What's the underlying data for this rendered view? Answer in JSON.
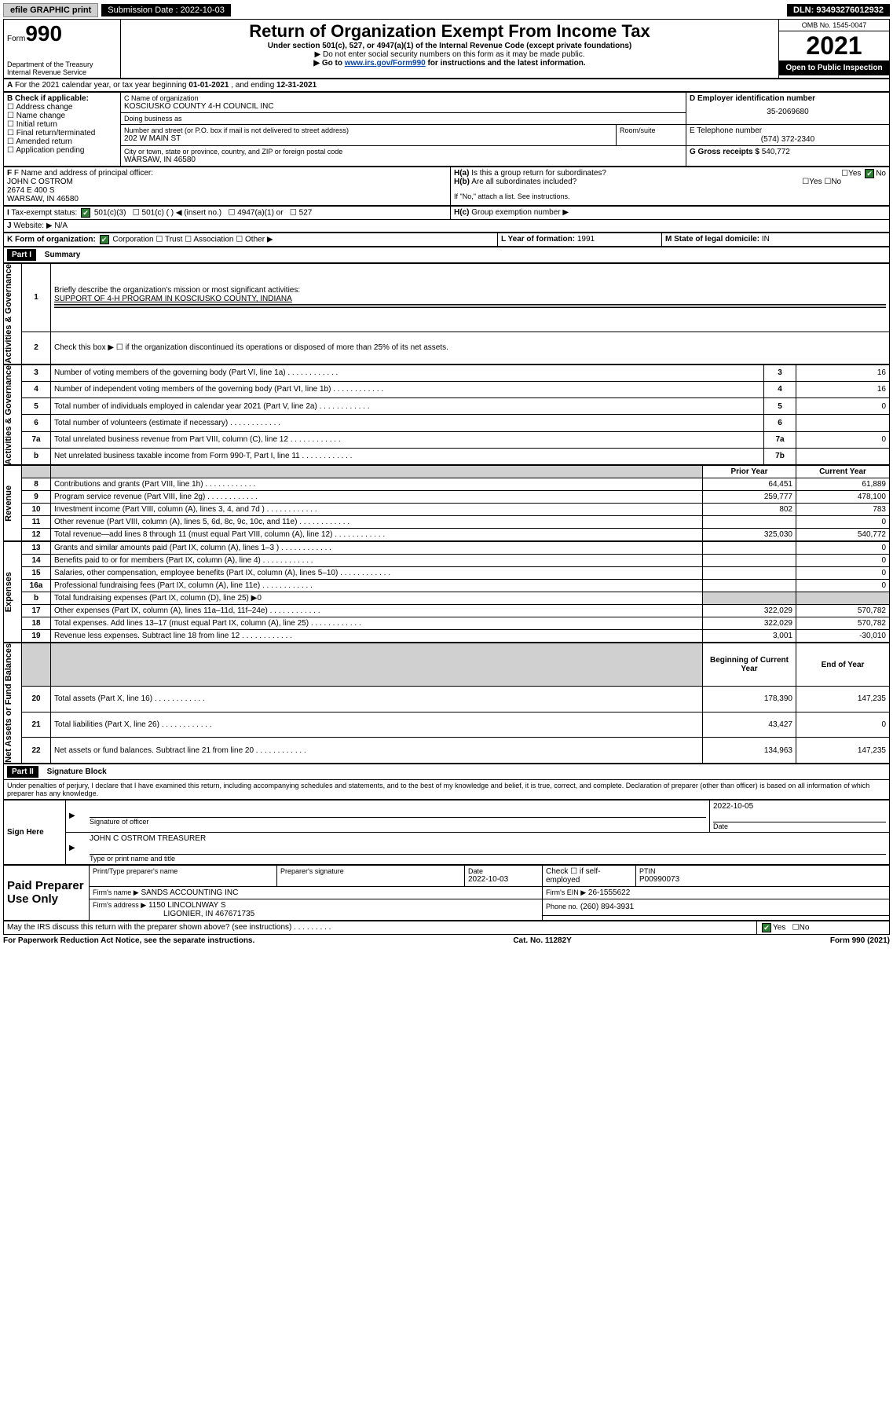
{
  "topbar": {
    "efile": "efile GRAPHIC print",
    "submission_label": "Submission Date : 2022-10-03",
    "dln": "DLN: 93493276012932"
  },
  "header": {
    "form_word": "Form",
    "form_num": "990",
    "title": "Return of Organization Exempt From Income Tax",
    "subtitle1": "Under section 501(c), 527, or 4947(a)(1) of the Internal Revenue Code (except private foundations)",
    "subtitle2": "▶ Do not enter social security numbers on this form as it may be made public.",
    "subtitle3_pre": "▶ Go to ",
    "subtitle3_link": "www.irs.gov/Form990",
    "subtitle3_post": " for instructions and the latest information.",
    "dept": "Department of the Treasury",
    "irs": "Internal Revenue Service",
    "omb": "OMB No. 1545-0047",
    "year": "2021",
    "open": "Open to Public Inspection"
  },
  "A": {
    "text_pre": "For the 2021 calendar year, or tax year beginning ",
    "begin": "01-01-2021",
    "mid": " , and ending ",
    "end": "12-31-2021"
  },
  "B": {
    "label": "B Check if applicable:",
    "opts": [
      "Address change",
      "Name change",
      "Initial return",
      "Final return/terminated",
      "Amended return",
      "Application pending"
    ]
  },
  "C": {
    "name_label": "C Name of organization",
    "name": "KOSCIUSKO COUNTY 4-H COUNCIL INC",
    "dba_label": "Doing business as",
    "street_label": "Number and street (or P.O. box if mail is not delivered to street address)",
    "street": "202 W MAIN ST",
    "room_label": "Room/suite",
    "city_label": "City or town, state or province, country, and ZIP or foreign postal code",
    "city": "WARSAW, IN  46580"
  },
  "D": {
    "label": "D Employer identification number",
    "value": "35-2069680"
  },
  "E": {
    "label": "E Telephone number",
    "value": "(574) 372-2340"
  },
  "G": {
    "label": "G Gross receipts $",
    "value": "540,772"
  },
  "F": {
    "label": "F Name and address of principal officer:",
    "name": "JOHN C OSTROM",
    "addr1": "2674 E 400 S",
    "addr2": "WARSAW, IN  46580"
  },
  "H": {
    "a": "Is this a group return for subordinates?",
    "b": "Are all subordinates included?",
    "note": "If \"No,\" attach a list. See instructions.",
    "c": "Group exemption number ▶",
    "yes": "Yes",
    "no": "No"
  },
  "I": {
    "label": "Tax-exempt status:",
    "o1": "501(c)(3)",
    "o2": "501(c) (  ) ◀ (insert no.)",
    "o3": "4947(a)(1) or",
    "o4": "527"
  },
  "J": {
    "label": "Website: ▶",
    "value": "N/A"
  },
  "K": {
    "label": "K Form of organization:",
    "o1": "Corporation",
    "o2": "Trust",
    "o3": "Association",
    "o4": "Other ▶"
  },
  "L": {
    "label": "L Year of formation:",
    "value": "1991"
  },
  "M": {
    "label": "M State of legal domicile:",
    "value": "IN"
  },
  "partI": {
    "title": "Part I",
    "name": "Summary",
    "side_ag": "Activities & Governance",
    "side_rev": "Revenue",
    "side_exp": "Expenses",
    "side_net": "Net Assets or Fund Balances",
    "l1_label": "Briefly describe the organization's mission or most significant activities:",
    "l1_text": "SUPPORT OF 4-H PROGRAM IN KOSCIUSKO COUNTY, INDIANA",
    "l2": "Check this box ▶ ☐  if the organization discontinued its operations or disposed of more than 25% of its net assets.",
    "rows_ag": [
      {
        "n": "3",
        "label": "Number of voting members of the governing body (Part VI, line 1a)",
        "box": "3",
        "val": "16"
      },
      {
        "n": "4",
        "label": "Number of independent voting members of the governing body (Part VI, line 1b)",
        "box": "4",
        "val": "16"
      },
      {
        "n": "5",
        "label": "Total number of individuals employed in calendar year 2021 (Part V, line 2a)",
        "box": "5",
        "val": "0"
      },
      {
        "n": "6",
        "label": "Total number of volunteers (estimate if necessary)",
        "box": "6",
        "val": ""
      },
      {
        "n": "7a",
        "label": "Total unrelated business revenue from Part VIII, column (C), line 12",
        "box": "7a",
        "val": "0"
      },
      {
        "n": "b",
        "label": "Net unrelated business taxable income from Form 990-T, Part I, line 11",
        "box": "7b",
        "val": ""
      }
    ],
    "col_prior": "Prior Year",
    "col_curr": "Current Year",
    "rows_rev": [
      {
        "n": "8",
        "label": "Contributions and grants (Part VIII, line 1h)",
        "p": "64,451",
        "c": "61,889"
      },
      {
        "n": "9",
        "label": "Program service revenue (Part VIII, line 2g)",
        "p": "259,777",
        "c": "478,100"
      },
      {
        "n": "10",
        "label": "Investment income (Part VIII, column (A), lines 3, 4, and 7d )",
        "p": "802",
        "c": "783"
      },
      {
        "n": "11",
        "label": "Other revenue (Part VIII, column (A), lines 5, 6d, 8c, 9c, 10c, and 11e)",
        "p": "",
        "c": "0"
      },
      {
        "n": "12",
        "label": "Total revenue—add lines 8 through 11 (must equal Part VIII, column (A), line 12)",
        "p": "325,030",
        "c": "540,772"
      }
    ],
    "rows_exp": [
      {
        "n": "13",
        "label": "Grants and similar amounts paid (Part IX, column (A), lines 1–3 )",
        "p": "",
        "c": "0"
      },
      {
        "n": "14",
        "label": "Benefits paid to or for members (Part IX, column (A), line 4)",
        "p": "",
        "c": "0"
      },
      {
        "n": "15",
        "label": "Salaries, other compensation, employee benefits (Part IX, column (A), lines 5–10)",
        "p": "",
        "c": "0"
      },
      {
        "n": "16a",
        "label": "Professional fundraising fees (Part IX, column (A), line 11e)",
        "p": "",
        "c": "0"
      },
      {
        "n": "b",
        "label": "Total fundraising expenses (Part IX, column (D), line 25) ▶0",
        "p": "shade",
        "c": "shade"
      },
      {
        "n": "17",
        "label": "Other expenses (Part IX, column (A), lines 11a–11d, 11f–24e)",
        "p": "322,029",
        "c": "570,782"
      },
      {
        "n": "18",
        "label": "Total expenses. Add lines 13–17 (must equal Part IX, column (A), line 25)",
        "p": "322,029",
        "c": "570,782"
      },
      {
        "n": "19",
        "label": "Revenue less expenses. Subtract line 18 from line 12",
        "p": "3,001",
        "c": "-30,010"
      }
    ],
    "col_beg": "Beginning of Current Year",
    "col_end": "End of Year",
    "rows_net": [
      {
        "n": "20",
        "label": "Total assets (Part X, line 16)",
        "p": "178,390",
        "c": "147,235"
      },
      {
        "n": "21",
        "label": "Total liabilities (Part X, line 26)",
        "p": "43,427",
        "c": "0"
      },
      {
        "n": "22",
        "label": "Net assets or fund balances. Subtract line 21 from line 20",
        "p": "134,963",
        "c": "147,235"
      }
    ]
  },
  "partII": {
    "title": "Part II",
    "name": "Signature Block",
    "decl": "Under penalties of perjury, I declare that I have examined this return, including accompanying schedules and statements, and to the best of my knowledge and belief, it is true, correct, and complete. Declaration of preparer (other than officer) is based on all information of which preparer has any knowledge.",
    "sign_here": "Sign Here",
    "sig_officer": "Signature of officer",
    "sig_date_label": "Date",
    "sig_date": "2022-10-05",
    "officer_typed": "JOHN C OSTROM TREASURER",
    "typed_label": "Type or print name and title",
    "paid": "Paid Preparer Use Only",
    "pp_name_label": "Print/Type preparer's name",
    "pp_sig_label": "Preparer's signature",
    "pp_date_label": "Date",
    "pp_date": "2022-10-03",
    "pp_check": "Check ☐ if self-employed",
    "ptin_label": "PTIN",
    "ptin": "P00990073",
    "firm_name_label": "Firm's name   ▶",
    "firm_name": "SANDS ACCOUNTING INC",
    "firm_ein_label": "Firm's EIN ▶",
    "firm_ein": "26-1555622",
    "firm_addr_label": "Firm's address ▶",
    "firm_addr1": "1150 LINCOLNWAY S",
    "firm_addr2": "LIGONIER, IN  467671735",
    "phone_label": "Phone no.",
    "phone": "(260) 894-3931",
    "may_irs": "May the IRS discuss this return with the preparer shown above? (see instructions)"
  },
  "footer": {
    "left": "For Paperwork Reduction Act Notice, see the separate instructions.",
    "mid": "Cat. No. 11282Y",
    "right": "Form 990 (2021)"
  }
}
